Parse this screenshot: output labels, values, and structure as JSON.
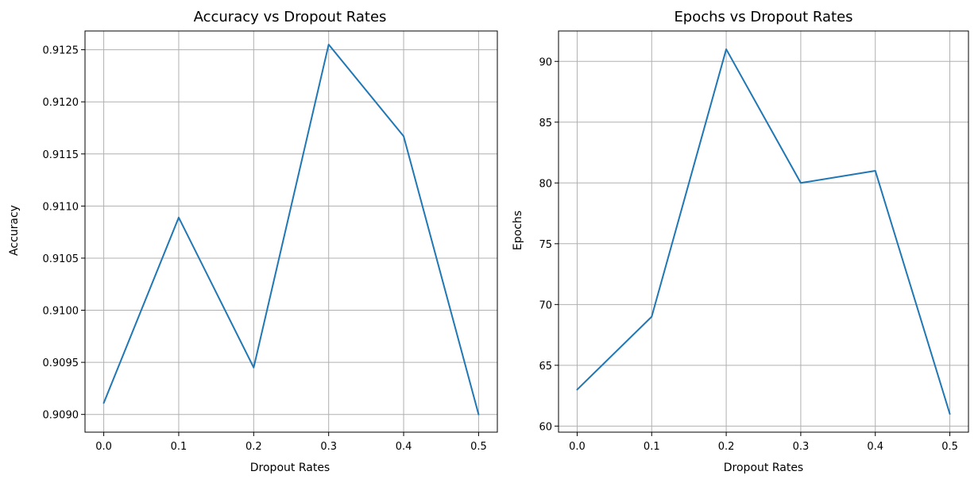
{
  "colors": {
    "series": "#1f77b4",
    "grid": "#b0b0b0"
  },
  "chart_data": [
    {
      "type": "line",
      "title": "Accuracy vs Dropout Rates",
      "xlabel": "Dropout Rates",
      "ylabel": "Accuracy",
      "x": [
        0.0,
        0.1,
        0.2,
        0.3,
        0.4,
        0.5
      ],
      "series": [
        {
          "values": [
            0.90911,
            0.91089,
            0.90945,
            0.91255,
            0.91167,
            0.909
          ]
        }
      ],
      "xlim": [
        -0.025,
        0.525
      ],
      "ylim": [
        0.90883,
        0.91268
      ],
      "xticks": [
        0.0,
        0.1,
        0.2,
        0.3,
        0.4,
        0.5
      ],
      "xtick_labels": [
        "0.0",
        "0.1",
        "0.2",
        "0.3",
        "0.4",
        "0.5"
      ],
      "yticks": [
        0.909,
        0.9095,
        0.91,
        0.9105,
        0.911,
        0.9115,
        0.912,
        0.9125
      ],
      "ytick_labels": [
        "0.9090",
        "0.9095",
        "0.9100",
        "0.9105",
        "0.9110",
        "0.9115",
        "0.9120",
        "0.9125"
      ],
      "grid": true,
      "legend": "none"
    },
    {
      "type": "line",
      "title": "Epochs vs Dropout Rates",
      "xlabel": "Dropout Rates",
      "ylabel": "Epochs",
      "x": [
        0.0,
        0.1,
        0.2,
        0.3,
        0.4,
        0.5
      ],
      "series": [
        {
          "values": [
            63,
            69,
            91,
            80,
            81,
            61
          ]
        }
      ],
      "xlim": [
        -0.025,
        0.525
      ],
      "ylim": [
        59.5,
        92.5
      ],
      "xticks": [
        0.0,
        0.1,
        0.2,
        0.3,
        0.4,
        0.5
      ],
      "xtick_labels": [
        "0.0",
        "0.1",
        "0.2",
        "0.3",
        "0.4",
        "0.5"
      ],
      "yticks": [
        60,
        65,
        70,
        75,
        80,
        85,
        90
      ],
      "ytick_labels": [
        "60",
        "65",
        "70",
        "75",
        "80",
        "85",
        "90"
      ],
      "grid": true,
      "legend": "none"
    }
  ]
}
